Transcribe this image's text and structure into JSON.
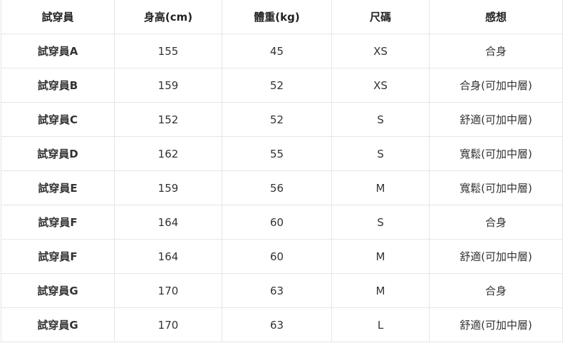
{
  "table": {
    "headers": [
      "試穿員",
      "身高(cm)",
      "體重(kg)",
      "尺碼",
      "感想"
    ],
    "rows": [
      [
        "試穿員A",
        "155",
        "45",
        "XS",
        "合身"
      ],
      [
        "試穿員B",
        "159",
        "52",
        "XS",
        "合身(可加中層)"
      ],
      [
        "試穿員C",
        "152",
        "52",
        "S",
        "舒適(可加中層)"
      ],
      [
        "試穿員D",
        "162",
        "55",
        "S",
        "寬鬆(可加中層)"
      ],
      [
        "試穿員E",
        "159",
        "56",
        "M",
        "寬鬆(可加中層)"
      ],
      [
        "試穿員F",
        "164",
        "60",
        "S",
        "合身"
      ],
      [
        "試穿員F",
        "164",
        "60",
        "M",
        "舒適(可加中層)"
      ],
      [
        "試穿員G",
        "170",
        "63",
        "M",
        "合身"
      ],
      [
        "試穿員G",
        "170",
        "63",
        "L",
        "舒適(可加中層)"
      ]
    ]
  }
}
